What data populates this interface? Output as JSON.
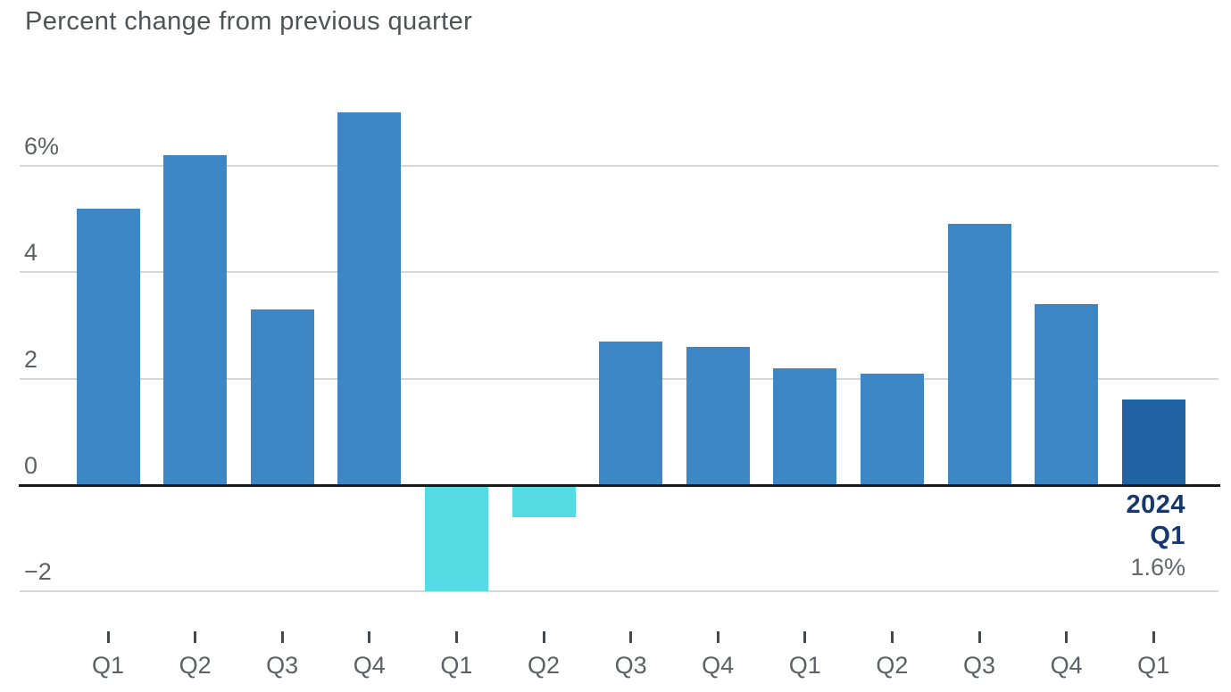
{
  "header": {
    "title": "Percent change from previous quarter"
  },
  "annotation": {
    "year": "2024",
    "quarter": "Q1",
    "value": "1.6%"
  },
  "colors": {
    "bar_primary": "#3e87c6",
    "bar_negative": "#55dbe4",
    "bar_highlight": "#2063a4",
    "grid": "#d6d6d6",
    "baseline": "#1a1a1a",
    "title_text": "#4e5357",
    "axis_text": "#5d6165",
    "annotation_navy": "#17386e",
    "annotation_gray": "#63676b"
  },
  "chart_data": {
    "type": "bar",
    "title": "Percent change from previous quarter",
    "categories": [
      "Q1",
      "Q2",
      "Q3",
      "Q4",
      "Q1",
      "Q2",
      "Q3",
      "Q4",
      "Q1",
      "Q2",
      "Q3",
      "Q4",
      "Q1"
    ],
    "values": [
      5.2,
      6.2,
      3.3,
      7.0,
      -2.0,
      -0.6,
      2.7,
      2.6,
      2.2,
      2.1,
      4.9,
      3.4,
      1.6
    ],
    "highlighted_index": 12,
    "negative_color_for_values_below_zero": true,
    "yticks": [
      {
        "value": 6,
        "label": "6%"
      },
      {
        "value": 4,
        "label": "4"
      },
      {
        "value": 2,
        "label": "2"
      },
      {
        "value": 0,
        "label": "0"
      },
      {
        "value": -2,
        "label": "−2"
      }
    ],
    "ylim": [
      -2.7,
      7.3
    ],
    "grid": true,
    "legend": false,
    "annotation": {
      "lines": [
        "2024",
        "Q1",
        "1.6%"
      ],
      "attached_to_last_bar": true
    }
  }
}
